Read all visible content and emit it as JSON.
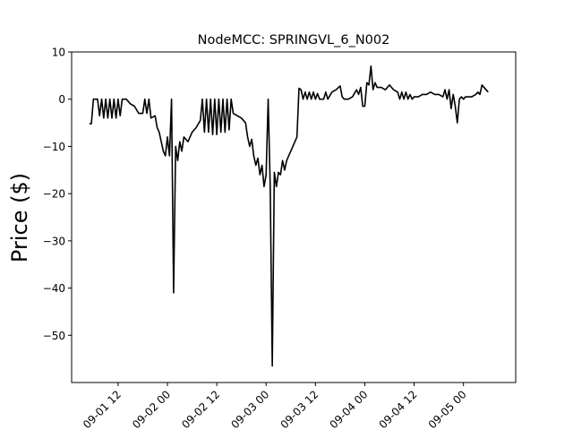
{
  "chart_data": {
    "type": "line",
    "title": "NodeMCC: SPRINGVL_6_N002",
    "xlabel": "",
    "ylabel": "Price ($)",
    "ylim": [
      -60,
      10
    ],
    "xlim": [
      "09-01 00:42",
      "09-05 12:42"
    ],
    "grid": false,
    "legend": "none",
    "color": "#000000",
    "yticks": [
      10,
      0,
      -10,
      -20,
      -30,
      -40,
      -50
    ],
    "yticks_label": [
      "10",
      "0",
      "−10",
      "−20",
      "−30",
      "−40",
      "−50"
    ],
    "xticks": [
      "09-01 12",
      "09-02 00",
      "09-02 12",
      "09-03 00",
      "09-03 12",
      "09-04 00",
      "09-04 12",
      "09-05 00"
    ],
    "series": [
      {
        "values": [
          [
            "09-01 05:00",
            -5.2
          ],
          [
            "09-01 05:30",
            -5.2
          ],
          [
            "09-01 06:00",
            0
          ],
          [
            "09-01 06:30",
            0
          ],
          [
            "09-01 07:00",
            0
          ],
          [
            "09-01 07:30",
            -3.5
          ],
          [
            "09-01 08:00",
            0
          ],
          [
            "09-01 08:30",
            -4
          ],
          [
            "09-01 09:00",
            0
          ],
          [
            "09-01 09:30",
            -4
          ],
          [
            "09-01 10:00",
            0
          ],
          [
            "09-01 10:30",
            -4
          ],
          [
            "09-01 11:00",
            0
          ],
          [
            "09-01 11:30",
            -4
          ],
          [
            "09-01 12:00",
            0
          ],
          [
            "09-01 12:30",
            -3.5
          ],
          [
            "09-01 13:00",
            0
          ],
          [
            "09-01 13:30",
            0
          ],
          [
            "09-01 14:00",
            0
          ],
          [
            "09-01 15:00",
            -1
          ],
          [
            "09-01 16:00",
            -1.5
          ],
          [
            "09-01 17:00",
            -3
          ],
          [
            "09-01 18:00",
            -3
          ],
          [
            "09-01 18:30",
            0
          ],
          [
            "09-01 19:00",
            -3
          ],
          [
            "09-01 19:30",
            0
          ],
          [
            "09-01 20:00",
            -4
          ],
          [
            "09-01 21:00",
            -3.5
          ],
          [
            "09-01 21:30",
            -6
          ],
          [
            "09-01 22:00",
            -7
          ],
          [
            "09-01 22:30",
            -9
          ],
          [
            "09-01 23:00",
            -11
          ],
          [
            "09-01 23:30",
            -12
          ],
          [
            "09-02 00:00",
            -8
          ],
          [
            "09-02 00:30",
            -12
          ],
          [
            "09-02 01:00",
            0
          ],
          [
            "09-02 01:30",
            -41
          ],
          [
            "09-02 02:00",
            -10
          ],
          [
            "09-02 02:30",
            -13
          ],
          [
            "09-02 03:00",
            -9
          ],
          [
            "09-02 03:30",
            -11
          ],
          [
            "09-02 04:00",
            -8
          ],
          [
            "09-02 05:00",
            -9
          ],
          [
            "09-02 06:00",
            -7
          ],
          [
            "09-02 07:00",
            -6
          ],
          [
            "09-02 08:00",
            -4.5
          ],
          [
            "09-02 08:30",
            0
          ],
          [
            "09-02 09:00",
            -7
          ],
          [
            "09-02 09:30",
            0
          ],
          [
            "09-02 10:00",
            -7
          ],
          [
            "09-02 10:30",
            0
          ],
          [
            "09-02 11:00",
            -7.5
          ],
          [
            "09-02 11:30",
            0
          ],
          [
            "09-02 12:00",
            -7.5
          ],
          [
            "09-02 12:30",
            0
          ],
          [
            "09-02 13:00",
            -7
          ],
          [
            "09-02 13:30",
            0
          ],
          [
            "09-02 14:00",
            -7
          ],
          [
            "09-02 14:30",
            0
          ],
          [
            "09-02 15:00",
            -6.5
          ],
          [
            "09-02 15:30",
            0
          ],
          [
            "09-02 16:00",
            -3
          ],
          [
            "09-02 17:00",
            -3.5
          ],
          [
            "09-02 18:00",
            -4
          ],
          [
            "09-02 19:00",
            -5
          ],
          [
            "09-02 19:30",
            -8
          ],
          [
            "09-02 20:00",
            -10
          ],
          [
            "09-02 20:30",
            -8.5
          ],
          [
            "09-02 21:00",
            -12
          ],
          [
            "09-02 21:30",
            -14
          ],
          [
            "09-02 22:00",
            -12.5
          ],
          [
            "09-02 22:30",
            -16
          ],
          [
            "09-02 23:00",
            -14
          ],
          [
            "09-02 23:30",
            -18.5
          ],
          [
            "09-03 00:00",
            -16
          ],
          [
            "09-03 00:30",
            0
          ],
          [
            "09-03 01:00",
            -18.5
          ],
          [
            "09-03 01:30",
            -56.5
          ],
          [
            "09-03 02:00",
            -15.5
          ],
          [
            "09-03 02:30",
            -18.5
          ],
          [
            "09-03 03:00",
            -15.5
          ],
          [
            "09-03 03:30",
            -16
          ],
          [
            "09-03 04:00",
            -13
          ],
          [
            "09-03 04:30",
            -15
          ],
          [
            "09-03 05:00",
            -13
          ],
          [
            "09-03 05:30",
            -12
          ],
          [
            "09-03 06:00",
            -11
          ],
          [
            "09-03 06:30",
            -10
          ],
          [
            "09-03 07:00",
            -9
          ],
          [
            "09-03 07:30",
            -8
          ],
          [
            "09-03 08:00",
            2.3
          ],
          [
            "09-03 08:30",
            2
          ],
          [
            "09-03 09:00",
            0
          ],
          [
            "09-03 09:30",
            1.5
          ],
          [
            "09-03 10:00",
            0
          ],
          [
            "09-03 10:30",
            1.5
          ],
          [
            "09-03 11:00",
            0
          ],
          [
            "09-03 11:30",
            1.5
          ],
          [
            "09-03 12:00",
            0
          ],
          [
            "09-03 12:30",
            1.2
          ],
          [
            "09-03 13:00",
            0
          ],
          [
            "09-03 14:00",
            0
          ],
          [
            "09-03 14:30",
            1.5
          ],
          [
            "09-03 15:00",
            0
          ],
          [
            "09-03 16:00",
            1.5
          ],
          [
            "09-03 17:00",
            2
          ],
          [
            "09-03 18:00",
            2.8
          ],
          [
            "09-03 18:30",
            0.5
          ],
          [
            "09-03 19:00",
            0
          ],
          [
            "09-03 20:00",
            0
          ],
          [
            "09-03 21:00",
            0.5
          ],
          [
            "09-03 22:00",
            2
          ],
          [
            "09-03 22:30",
            1
          ],
          [
            "09-03 23:00",
            2.5
          ],
          [
            "09-03 23:30",
            -1.5
          ],
          [
            "09-04 00:00",
            -1.5
          ],
          [
            "09-04 00:30",
            3.5
          ],
          [
            "09-04 01:00",
            3
          ],
          [
            "09-04 01:30",
            7
          ],
          [
            "09-04 02:00",
            2
          ],
          [
            "09-04 02:30",
            3.5
          ],
          [
            "09-04 03:00",
            2.5
          ],
          [
            "09-04 04:00",
            2.5
          ],
          [
            "09-04 05:00",
            2
          ],
          [
            "09-04 06:00",
            3
          ],
          [
            "09-04 07:00",
            2
          ],
          [
            "09-04 08:00",
            1.5
          ],
          [
            "09-04 08:30",
            0
          ],
          [
            "09-04 09:00",
            1.5
          ],
          [
            "09-04 09:30",
            0
          ],
          [
            "09-04 10:00",
            1.5
          ],
          [
            "09-04 10:30",
            0
          ],
          [
            "09-04 11:00",
            1
          ],
          [
            "09-04 11:30",
            0
          ],
          [
            "09-04 12:00",
            0.5
          ],
          [
            "09-04 13:00",
            0.5
          ],
          [
            "09-04 14:00",
            1
          ],
          [
            "09-04 15:00",
            1
          ],
          [
            "09-04 16:00",
            1.5
          ],
          [
            "09-04 17:00",
            1
          ],
          [
            "09-04 18:00",
            1
          ],
          [
            "09-04 19:00",
            0.5
          ],
          [
            "09-04 19:30",
            2
          ],
          [
            "09-04 20:00",
            0
          ],
          [
            "09-04 20:30",
            2
          ],
          [
            "09-04 21:00",
            -2
          ],
          [
            "09-04 21:30",
            1
          ],
          [
            "09-04 22:00",
            -1.5
          ],
          [
            "09-04 22:30",
            -5
          ],
          [
            "09-04 23:00",
            0
          ],
          [
            "09-04 23:30",
            0.5
          ],
          [
            "09-05 00:00",
            0
          ],
          [
            "09-05 00:30",
            0.5
          ],
          [
            "09-05 01:00",
            0.5
          ],
          [
            "09-05 02:00",
            0.5
          ],
          [
            "09-05 03:00",
            1
          ],
          [
            "09-05 03:30",
            1.5
          ],
          [
            "09-05 04:00",
            1
          ],
          [
            "09-05 04:30",
            3
          ],
          [
            "09-05 05:00",
            2.5
          ],
          [
            "09-05 05:30",
            2
          ],
          [
            "09-05 06:00",
            1.5
          ]
        ]
      }
    ]
  }
}
